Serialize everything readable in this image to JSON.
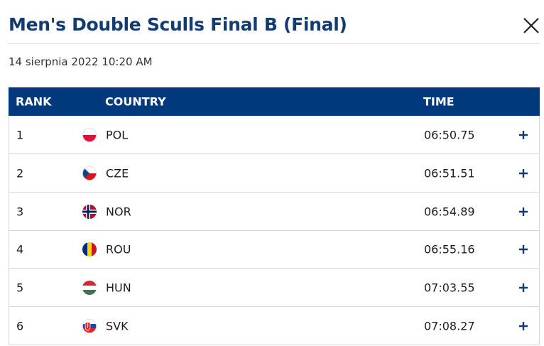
{
  "header": {
    "title": "Men's Double Sculls Final B (Final)",
    "date": "14 sierpnia 2022 10:20 AM"
  },
  "table": {
    "headers": [
      "RANK",
      "COUNTRY",
      "TIME"
    ],
    "rows": [
      [
        1,
        "POL",
        "06:50.75"
      ],
      [
        2,
        "CZE",
        "06:51.51"
      ],
      [
        3,
        "NOR",
        "06:54.89"
      ],
      [
        4,
        "ROU",
        "06:55.16"
      ],
      [
        5,
        "HUN",
        "07:03.55"
      ],
      [
        6,
        "SVK",
        "07:08.27"
      ]
    ]
  }
}
